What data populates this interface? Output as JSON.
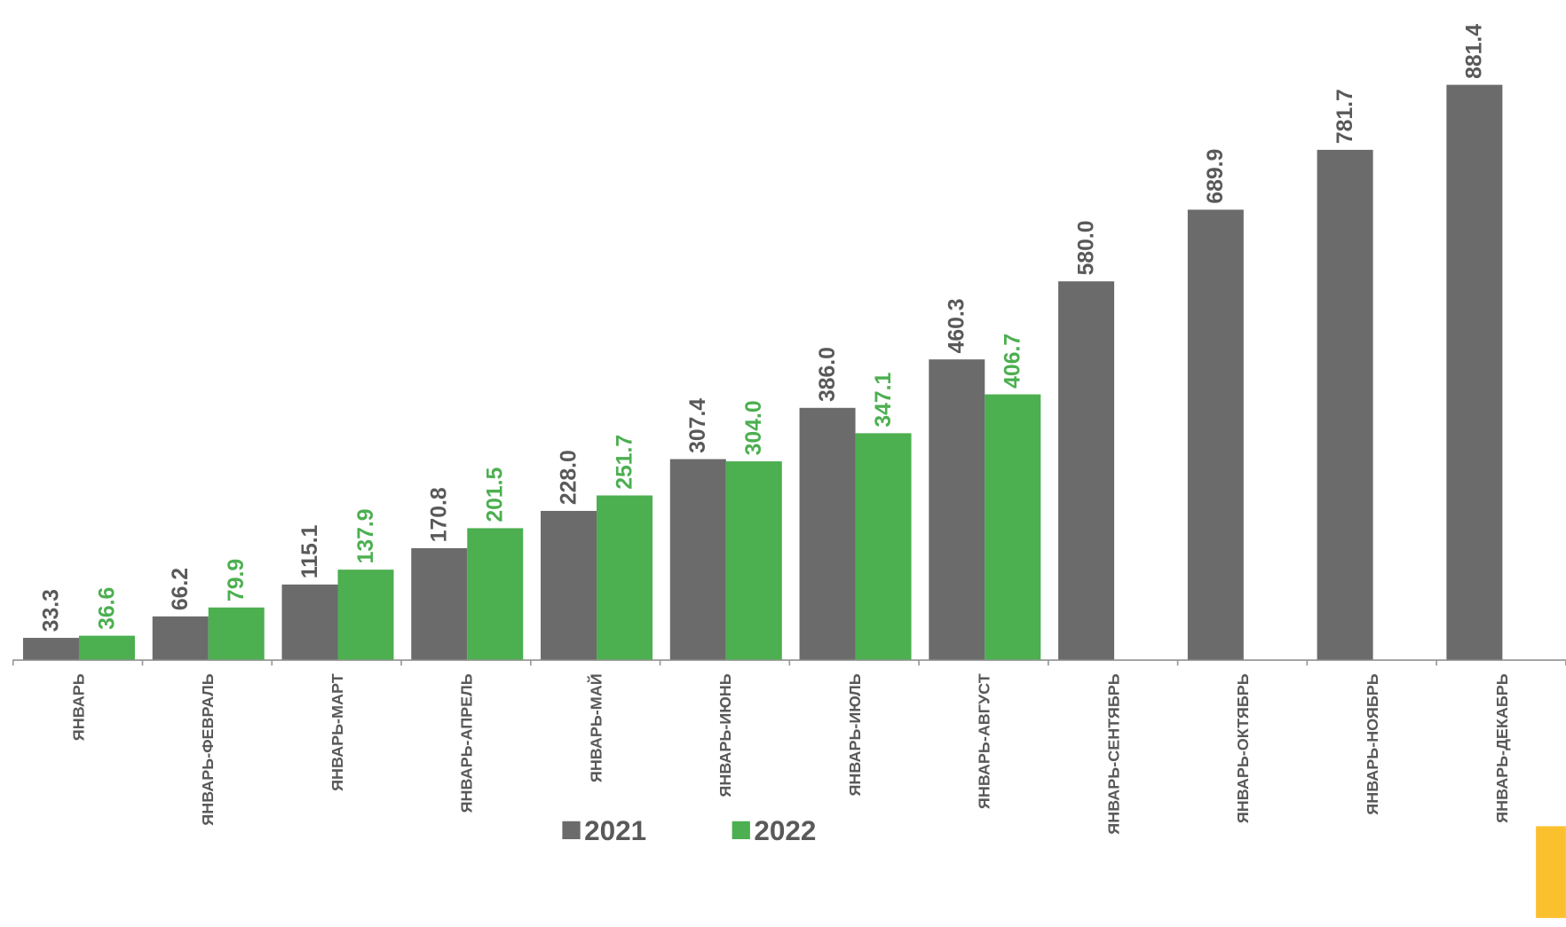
{
  "chart_data": {
    "type": "bar",
    "categories": [
      "ЯНВАРЬ",
      "ЯНВАРЬ-ФЕВРАЛЬ",
      "ЯНВАРЬ-МАРТ",
      "ЯНВАРЬ-АПРЕЛЬ",
      "ЯНВАРЬ-МАЙ",
      "ЯНВАРЬ-ИЮНЬ",
      "ЯНВАРЬ-ИЮЛЬ",
      "ЯНВАРЬ-АВГУСТ",
      "ЯНВАРЬ-СЕНТЯБРЬ",
      "ЯНВАРЬ-ОКТЯБРЬ",
      "ЯНВАРЬ-НОЯБРЬ",
      "ЯНВАРЬ-ДЕКАБРЬ"
    ],
    "series": [
      {
        "name": "2021",
        "color": "#6b6b6b",
        "values": [
          33.3,
          66.2,
          115.1,
          170.8,
          228.0,
          307.4,
          386.0,
          460.3,
          580.0,
          689.9,
          781.7,
          881.4
        ],
        "value_labels": [
          "33.3",
          "66.2",
          "115.1",
          "170.8",
          "228.0",
          "307.4",
          "386.0",
          "460.3",
          "580.0",
          "689.9",
          "781.7",
          "881.4"
        ]
      },
      {
        "name": "2022",
        "color": "#4caf50",
        "values": [
          36.6,
          79.9,
          137.9,
          201.5,
          251.7,
          304.0,
          347.1,
          406.7,
          null,
          null,
          null,
          null
        ],
        "value_labels": [
          "36.6",
          "79.9",
          "137.9",
          "201.5",
          "251.7",
          "304.0",
          "347.1",
          "406.7",
          null,
          null,
          null,
          null
        ]
      }
    ],
    "legend": "bottom"
  }
}
